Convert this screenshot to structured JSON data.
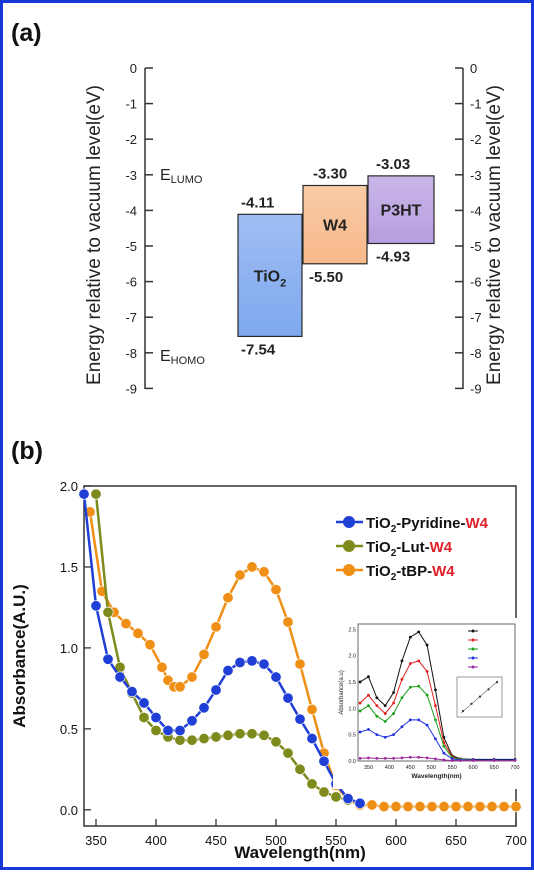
{
  "panel_a": {
    "panel_label": "(a)",
    "y_axis_label": "Energy relative to vacuum level(eV)",
    "left_ticks": [
      "0",
      "-1",
      "-2",
      "-3",
      "-4",
      "-5",
      "-6",
      "-7",
      "-8",
      "-9"
    ],
    "right_ticks": [
      "0",
      "-1",
      "-2",
      "-3",
      "-4",
      "-5",
      "-6",
      "-7",
      "-8",
      "-9"
    ],
    "lumo_label_main": "E",
    "lumo_label_sub": "LUMO",
    "homo_label_main": "E",
    "homo_label_sub": "HOMO"
  },
  "panel_b": {
    "panel_label": "(b)",
    "xlabel": "Wavelength(nm)",
    "ylabel": "Absorbance(A.U.)",
    "legend": [
      {
        "prefix": "TiO",
        "sub": "2",
        "mid": "-Pyridine-",
        "suffix": "W4"
      },
      {
        "prefix": "TiO",
        "sub": "2",
        "mid": "-Lut-",
        "suffix": "W4"
      },
      {
        "prefix": "TiO",
        "sub": "2",
        "mid": "-tBP-",
        "suffix": "W4"
      }
    ],
    "legend_suffix_color": "#e0202a",
    "inset": {
      "xlabel": "Wavelength(nm)",
      "ylabel": "Absorbance(a.u)"
    }
  },
  "chart_data": [
    {
      "type": "bar",
      "title": "",
      "ylabel": "Energy relative to vacuum level(eV)",
      "ylim": [
        -9,
        0
      ],
      "bars": [
        {
          "name": "TiO",
          "sub": "2",
          "lumo": -4.11,
          "homo": -7.54,
          "lumo_label": "-4.11",
          "homo_label": "-7.54",
          "color": "#7fa8ef"
        },
        {
          "name": "W4",
          "sub": "",
          "lumo": -3.3,
          "homo": -5.5,
          "lumo_label": "-3.30",
          "homo_label": "-5.50",
          "color": "#f7b98a"
        },
        {
          "name": "P3HT",
          "sub": "",
          "lumo": -3.03,
          "homo": -4.93,
          "lumo_label": "-3.03",
          "homo_label": "-4.93",
          "color": "#b79ee0"
        }
      ]
    },
    {
      "type": "line",
      "xlabel": "Wavelength(nm)",
      "ylabel": "Absorbance(A.U.)",
      "xlim": [
        340,
        700
      ],
      "ylim": [
        -0.1,
        2.0
      ],
      "xticks": [
        "350",
        "400",
        "450",
        "500",
        "550",
        "600",
        "650",
        "700"
      ],
      "yticks": [
        "0.0",
        "0.5",
        "1.0",
        "1.5",
        "2.0"
      ],
      "series": [
        {
          "name": "TiO2-Pyridine-W4",
          "color": "#1f3fd6",
          "x": [
            340,
            350,
            360,
            370,
            380,
            390,
            400,
            410,
            420,
            430,
            440,
            450,
            460,
            470,
            480,
            490,
            500,
            510,
            520,
            530,
            540,
            550,
            560,
            570
          ],
          "y": [
            1.95,
            1.26,
            0.93,
            0.82,
            0.73,
            0.66,
            0.57,
            0.49,
            0.49,
            0.55,
            0.63,
            0.74,
            0.86,
            0.91,
            0.92,
            0.9,
            0.82,
            0.69,
            0.56,
            0.44,
            0.3,
            0.16,
            0.07,
            0.04
          ]
        },
        {
          "name": "TiO2-Lut-W4",
          "color": "#7e8a1c",
          "x": [
            350,
            360,
            370,
            380,
            390,
            400,
            410,
            420,
            430,
            440,
            450,
            460,
            470,
            480,
            490,
            500,
            510,
            520,
            530,
            540,
            550,
            560
          ],
          "y": [
            1.95,
            1.22,
            0.88,
            0.72,
            0.57,
            0.49,
            0.45,
            0.43,
            0.43,
            0.44,
            0.45,
            0.46,
            0.47,
            0.47,
            0.46,
            0.42,
            0.35,
            0.25,
            0.16,
            0.11,
            0.08,
            0.06
          ]
        },
        {
          "name": "TiO2-tBP-W4",
          "color": "#ef8f16",
          "x": [
            345,
            355,
            365,
            375,
            385,
            395,
            405,
            410,
            415,
            420,
            430,
            440,
            450,
            460,
            470,
            480,
            490,
            500,
            510,
            520,
            530,
            540,
            550,
            560,
            570,
            580,
            590,
            600,
            610,
            620,
            630,
            640,
            650,
            660,
            670,
            680,
            690,
            700
          ],
          "y": [
            1.84,
            1.35,
            1.22,
            1.15,
            1.09,
            1.02,
            0.88,
            0.8,
            0.76,
            0.76,
            0.82,
            0.96,
            1.13,
            1.31,
            1.45,
            1.5,
            1.47,
            1.36,
            1.16,
            0.9,
            0.62,
            0.35,
            0.15,
            0.06,
            0.03,
            0.03,
            0.02,
            0.02,
            0.02,
            0.02,
            0.02,
            0.02,
            0.02,
            0.02,
            0.02,
            0.02,
            0.02,
            0.02
          ]
        }
      ]
    },
    {
      "type": "line",
      "title": "",
      "xlabel": "Wavelength(nm)",
      "ylabel": "Absorbance(a.u)",
      "xlim": [
        325,
        700
      ],
      "ylim": [
        0,
        2.6
      ],
      "xticks": [
        "350",
        "400",
        "450",
        "500",
        "550",
        "600",
        "650",
        "700"
      ],
      "yticks": [
        "0.0",
        "0.5",
        "1.0",
        "1.5",
        "2.0",
        "2.5"
      ],
      "series": [
        {
          "name": "",
          "color": "#111111",
          "x": [
            330,
            350,
            370,
            390,
            410,
            430,
            450,
            470,
            490,
            510,
            530,
            550,
            570,
            600,
            650,
            700
          ],
          "y": [
            1.5,
            1.6,
            1.2,
            1.05,
            1.3,
            1.9,
            2.35,
            2.45,
            2.2,
            1.35,
            0.45,
            0.1,
            0.04,
            0.03,
            0.03,
            0.03
          ]
        },
        {
          "name": "",
          "color": "#e02020",
          "x": [
            330,
            350,
            370,
            390,
            410,
            430,
            450,
            470,
            490,
            510,
            530,
            550,
            570,
            600,
            650,
            700
          ],
          "y": [
            1.1,
            1.25,
            1.05,
            0.9,
            1.1,
            1.55,
            1.85,
            1.9,
            1.7,
            1.05,
            0.35,
            0.08,
            0.03,
            0.02,
            0.02,
            0.02
          ]
        },
        {
          "name": "",
          "color": "#1aa01a",
          "x": [
            330,
            350,
            370,
            390,
            410,
            430,
            450,
            470,
            490,
            510,
            530,
            550,
            570,
            600,
            650,
            700
          ],
          "y": [
            0.95,
            1.05,
            0.85,
            0.75,
            0.9,
            1.2,
            1.4,
            1.42,
            1.25,
            0.78,
            0.28,
            0.06,
            0.03,
            0.02,
            0.02,
            0.02
          ]
        },
        {
          "name": "",
          "color": "#2030e0",
          "x": [
            330,
            350,
            370,
            390,
            410,
            430,
            450,
            470,
            490,
            510,
            530,
            550,
            570,
            600,
            650,
            700
          ],
          "y": [
            0.55,
            0.6,
            0.5,
            0.45,
            0.5,
            0.65,
            0.78,
            0.78,
            0.68,
            0.42,
            0.15,
            0.04,
            0.02,
            0.02,
            0.02,
            0.02
          ]
        },
        {
          "name": "",
          "color": "#9a2aa0",
          "x": [
            330,
            350,
            370,
            390,
            410,
            430,
            450,
            470,
            490,
            510,
            530,
            550,
            570,
            600,
            650,
            700
          ],
          "y": [
            0.05,
            0.06,
            0.05,
            0.05,
            0.05,
            0.06,
            0.07,
            0.07,
            0.06,
            0.04,
            0.02,
            0.01,
            0.01,
            0.01,
            0.01,
            0.01
          ]
        }
      ]
    }
  ]
}
